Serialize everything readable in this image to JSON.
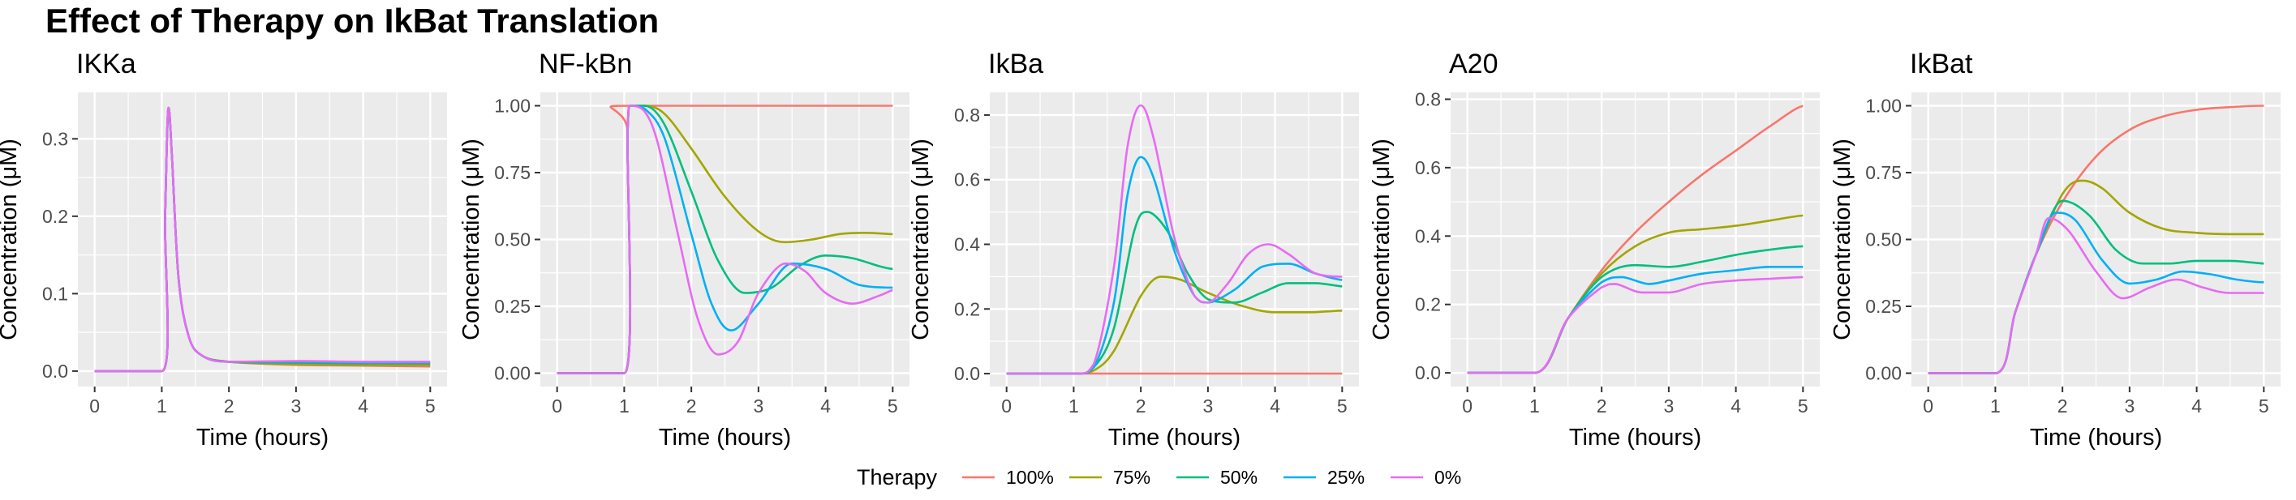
{
  "chart_data": {
    "type": "line",
    "title": "Effect of Therapy on IkBat Translation",
    "legend": {
      "title": "Therapy",
      "placement": "bottom",
      "entries": [
        {
          "label": "100%",
          "color": "#F8766D"
        },
        {
          "label": "75%",
          "color": "#A3A500"
        },
        {
          "label": "50%",
          "color": "#00BF7D"
        },
        {
          "label": "25%",
          "color": "#00B0F6"
        },
        {
          "label": "0%",
          "color": "#E76BF3"
        }
      ]
    },
    "grid": true,
    "panels": [
      {
        "title": "IKKa",
        "xlabel": "Time (hours)",
        "ylabel": "Concentration (μM)",
        "xlim": [
          -0.25,
          5.25
        ],
        "ylim": [
          -0.02,
          0.36
        ],
        "xticks": [
          0,
          1,
          2,
          3,
          4,
          5
        ],
        "yticks": [
          0,
          0.1,
          0.2,
          0.3
        ],
        "ytick_labels": [
          "0.0",
          "0.1",
          "0.2",
          "0.3"
        ],
        "series": [
          {
            "color": "#F8766D",
            "x": [
              0,
              1.0,
              1.05,
              1.1,
              1.15,
              1.25,
              1.4,
              1.6,
              2,
              3,
              4,
              5
            ],
            "y": [
              0,
              0,
              0.2,
              0.34,
              0.28,
              0.12,
              0.045,
              0.02,
              0.012,
              0.008,
              0.007,
              0.006
            ]
          },
          {
            "color": "#A3A500",
            "x": [
              0,
              1.0,
              1.05,
              1.1,
              1.15,
              1.25,
              1.4,
              1.6,
              2,
              3,
              4,
              5
            ],
            "y": [
              0,
              0,
              0.2,
              0.34,
              0.28,
              0.12,
              0.045,
              0.02,
              0.012,
              0.009,
              0.008,
              0.008
            ]
          },
          {
            "color": "#00BF7D",
            "x": [
              0,
              1.0,
              1.05,
              1.1,
              1.15,
              1.25,
              1.4,
              1.6,
              2,
              3,
              4,
              5
            ],
            "y": [
              0,
              0,
              0.2,
              0.34,
              0.28,
              0.12,
              0.045,
              0.02,
              0.012,
              0.011,
              0.01,
              0.01
            ]
          },
          {
            "color": "#00B0F6",
            "x": [
              0,
              1.0,
              1.05,
              1.1,
              1.15,
              1.25,
              1.4,
              1.6,
              2,
              3,
              4,
              5
            ],
            "y": [
              0,
              0,
              0.2,
              0.34,
              0.28,
              0.12,
              0.045,
              0.02,
              0.012,
              0.012,
              0.011,
              0.011
            ]
          },
          {
            "color": "#E76BF3",
            "x": [
              0,
              1.0,
              1.05,
              1.1,
              1.15,
              1.25,
              1.4,
              1.6,
              2,
              3,
              4,
              5
            ],
            "y": [
              0,
              0,
              0.2,
              0.34,
              0.28,
              0.12,
              0.045,
              0.02,
              0.012,
              0.013,
              0.012,
              0.012
            ]
          }
        ]
      },
      {
        "title": "NF-kBn",
        "xlabel": "Time (hours)",
        "ylabel": "Concentration (μM)",
        "xlim": [
          -0.25,
          5.25
        ],
        "ylim": [
          -0.05,
          1.05
        ],
        "xticks": [
          0,
          1,
          2,
          3,
          4,
          5
        ],
        "yticks": [
          0,
          0.25,
          0.5,
          0.75,
          1.0
        ],
        "ytick_labels": [
          "0.00",
          "0.25",
          "0.50",
          "0.75",
          "1.00"
        ],
        "series": [
          {
            "color": "#F8766D",
            "x": [
              0,
              1.0,
              1.05,
              1.1,
              5
            ],
            "y": [
              0,
              0,
              0.9,
              1.0,
              1.0
            ]
          },
          {
            "color": "#A3A500",
            "x": [
              0,
              1.0,
              1.05,
              1.1,
              1.3,
              1.6,
              2.0,
              2.5,
              3.0,
              3.4,
              3.8,
              4.2,
              4.6,
              5
            ],
            "y": [
              0,
              0,
              0.9,
              1.0,
              1.0,
              0.97,
              0.84,
              0.66,
              0.53,
              0.49,
              0.5,
              0.52,
              0.525,
              0.52
            ]
          },
          {
            "color": "#00BF7D",
            "x": [
              0,
              1.0,
              1.05,
              1.1,
              1.3,
              1.6,
              2.0,
              2.4,
              2.8,
              3.2,
              3.6,
              4.0,
              4.4,
              4.8,
              5
            ],
            "y": [
              0,
              0,
              0.9,
              1.0,
              1.0,
              0.93,
              0.68,
              0.42,
              0.3,
              0.32,
              0.4,
              0.44,
              0.43,
              0.4,
              0.39
            ]
          },
          {
            "color": "#00B0F6",
            "x": [
              0,
              1.0,
              1.05,
              1.1,
              1.3,
              1.6,
              2.0,
              2.3,
              2.6,
              3.0,
              3.5,
              4.0,
              4.5,
              5
            ],
            "y": [
              0,
              0,
              0.9,
              1.0,
              0.99,
              0.88,
              0.52,
              0.26,
              0.16,
              0.26,
              0.41,
              0.39,
              0.33,
              0.32
            ]
          },
          {
            "color": "#E76BF3",
            "x": [
              0,
              1.0,
              1.05,
              1.1,
              1.3,
              1.5,
              1.8,
              2.1,
              2.4,
              2.7,
              3.0,
              3.4,
              3.7,
              4.0,
              4.4,
              4.8,
              5
            ],
            "y": [
              0,
              0,
              0.9,
              1.0,
              0.98,
              0.86,
              0.52,
              0.2,
              0.07,
              0.12,
              0.3,
              0.41,
              0.38,
              0.3,
              0.26,
              0.29,
              0.31
            ]
          }
        ]
      },
      {
        "title": "IkBa",
        "xlabel": "Time (hours)",
        "ylabel": "Concentration (μM)",
        "xlim": [
          -0.25,
          5.25
        ],
        "ylim": [
          -0.04,
          0.87
        ],
        "xticks": [
          0,
          1,
          2,
          3,
          4,
          5
        ],
        "yticks": [
          0,
          0.2,
          0.4,
          0.6,
          0.8
        ],
        "ytick_labels": [
          "0.0",
          "0.2",
          "0.4",
          "0.6",
          "0.8"
        ],
        "series": [
          {
            "color": "#F8766D",
            "x": [
              0,
              5
            ],
            "y": [
              0,
              0
            ]
          },
          {
            "color": "#A3A500",
            "x": [
              0,
              1.0,
              1.3,
              1.6,
              2.0,
              2.3,
              2.6,
              3.0,
              3.5,
              4.0,
              4.5,
              5
            ],
            "y": [
              0,
              0,
              0.01,
              0.07,
              0.24,
              0.3,
              0.29,
              0.25,
              0.21,
              0.19,
              0.19,
              0.195
            ]
          },
          {
            "color": "#00BF7D",
            "x": [
              0,
              1.0,
              1.3,
              1.6,
              1.9,
              2.1,
              2.4,
              2.7,
              3.0,
              3.4,
              3.8,
              4.2,
              4.6,
              5
            ],
            "y": [
              0,
              0,
              0.02,
              0.14,
              0.44,
              0.5,
              0.44,
              0.31,
              0.23,
              0.22,
              0.25,
              0.28,
              0.28,
              0.27
            ]
          },
          {
            "color": "#00B0F6",
            "x": [
              0,
              1.0,
              1.3,
              1.6,
              1.8,
              2.0,
              2.2,
              2.5,
              2.8,
              3.0,
              3.4,
              3.8,
              4.2,
              4.6,
              5
            ],
            "y": [
              0,
              0,
              0.02,
              0.22,
              0.55,
              0.67,
              0.6,
              0.38,
              0.24,
              0.22,
              0.26,
              0.33,
              0.34,
              0.31,
              0.29
            ]
          },
          {
            "color": "#E76BF3",
            "x": [
              0,
              1.0,
              1.3,
              1.6,
              1.8,
              2.0,
              2.2,
              2.5,
              2.8,
              3.0,
              3.3,
              3.6,
              3.9,
              4.2,
              4.6,
              5
            ],
            "y": [
              0,
              0,
              0.03,
              0.33,
              0.7,
              0.83,
              0.72,
              0.42,
              0.24,
              0.22,
              0.28,
              0.37,
              0.4,
              0.37,
              0.31,
              0.3
            ]
          }
        ]
      },
      {
        "title": "A20",
        "xlabel": "Time (hours)",
        "ylabel": "Concentration (μM)",
        "xlim": [
          -0.25,
          5.25
        ],
        "ylim": [
          -0.04,
          0.82
        ],
        "xticks": [
          0,
          1,
          2,
          3,
          4,
          5
        ],
        "yticks": [
          0,
          0.2,
          0.4,
          0.6,
          0.8
        ],
        "ytick_labels": [
          "0.0",
          "0.2",
          "0.4",
          "0.6",
          "0.8"
        ],
        "series": [
          {
            "color": "#F8766D",
            "x": [
              0,
              1.0,
              1.5,
              2.0,
              2.5,
              3.0,
              3.5,
              4.0,
              4.5,
              5
            ],
            "y": [
              0,
              0,
              0.16,
              0.3,
              0.41,
              0.5,
              0.58,
              0.65,
              0.72,
              0.78
            ]
          },
          {
            "color": "#A3A500",
            "x": [
              0,
              1.0,
              1.5,
              2.0,
              2.5,
              3.0,
              3.5,
              4.0,
              4.5,
              5
            ],
            "y": [
              0,
              0,
              0.16,
              0.29,
              0.37,
              0.41,
              0.42,
              0.43,
              0.445,
              0.46
            ]
          },
          {
            "color": "#00BF7D",
            "x": [
              0,
              1.0,
              1.5,
              2.0,
              2.5,
              3.0,
              3.5,
              4.0,
              4.5,
              5
            ],
            "y": [
              0,
              0,
              0.16,
              0.28,
              0.315,
              0.31,
              0.325,
              0.345,
              0.36,
              0.37
            ]
          },
          {
            "color": "#00B0F6",
            "x": [
              0,
              1.0,
              1.5,
              2.0,
              2.3,
              2.7,
              3.0,
              3.5,
              4.0,
              4.5,
              5
            ],
            "y": [
              0,
              0,
              0.16,
              0.265,
              0.28,
              0.26,
              0.27,
              0.29,
              0.3,
              0.31,
              0.31
            ]
          },
          {
            "color": "#E76BF3",
            "x": [
              0,
              1.0,
              1.5,
              2.0,
              2.2,
              2.6,
              3.0,
              3.5,
              4.0,
              4.5,
              5
            ],
            "y": [
              0,
              0,
              0.16,
              0.25,
              0.26,
              0.235,
              0.235,
              0.26,
              0.27,
              0.275,
              0.28
            ]
          }
        ]
      },
      {
        "title": "IkBat",
        "xlabel": "Time (hours)",
        "ylabel": "Concentration (μM)",
        "xlim": [
          -0.25,
          5.25
        ],
        "ylim": [
          -0.05,
          1.05
        ],
        "xticks": [
          0,
          1,
          2,
          3,
          4,
          5
        ],
        "yticks": [
          0,
          0.25,
          0.5,
          0.75,
          1.0
        ],
        "ytick_labels": [
          "0.00",
          "0.25",
          "0.50",
          "0.75",
          "1.00"
        ],
        "series": [
          {
            "color": "#F8766D",
            "x": [
              0,
              1.0,
              1.3,
              1.6,
              2.0,
              2.5,
              3.0,
              3.5,
              4.0,
              4.5,
              5
            ],
            "y": [
              0,
              0,
              0.23,
              0.44,
              0.64,
              0.81,
              0.91,
              0.96,
              0.985,
              0.995,
              1.0
            ]
          },
          {
            "color": "#A3A500",
            "x": [
              0,
              1.0,
              1.3,
              1.6,
              2.0,
              2.3,
              2.6,
              3.0,
              3.5,
              4.0,
              4.5,
              5
            ],
            "y": [
              0,
              0,
              0.23,
              0.44,
              0.67,
              0.72,
              0.69,
              0.6,
              0.54,
              0.525,
              0.52,
              0.52
            ]
          },
          {
            "color": "#00BF7D",
            "x": [
              0,
              1.0,
              1.3,
              1.6,
              2.0,
              2.4,
              2.8,
              3.2,
              3.6,
              4.0,
              4.5,
              5
            ],
            "y": [
              0,
              0,
              0.23,
              0.44,
              0.645,
              0.59,
              0.46,
              0.41,
              0.41,
              0.42,
              0.42,
              0.41
            ]
          },
          {
            "color": "#00B0F6",
            "x": [
              0,
              1.0,
              1.3,
              1.6,
              1.9,
              2.2,
              2.6,
              3.0,
              3.4,
              3.8,
              4.2,
              4.6,
              5
            ],
            "y": [
              0,
              0,
              0.23,
              0.44,
              0.6,
              0.57,
              0.42,
              0.335,
              0.35,
              0.38,
              0.37,
              0.35,
              0.34
            ]
          },
          {
            "color": "#E76BF3",
            "x": [
              0,
              1.0,
              1.3,
              1.6,
              1.8,
              2.1,
              2.5,
              2.9,
              3.3,
              3.7,
              4.1,
              4.5,
              5
            ],
            "y": [
              0,
              0,
              0.23,
              0.44,
              0.58,
              0.53,
              0.38,
              0.28,
              0.32,
              0.35,
              0.32,
              0.3,
              0.3
            ]
          }
        ]
      }
    ]
  }
}
